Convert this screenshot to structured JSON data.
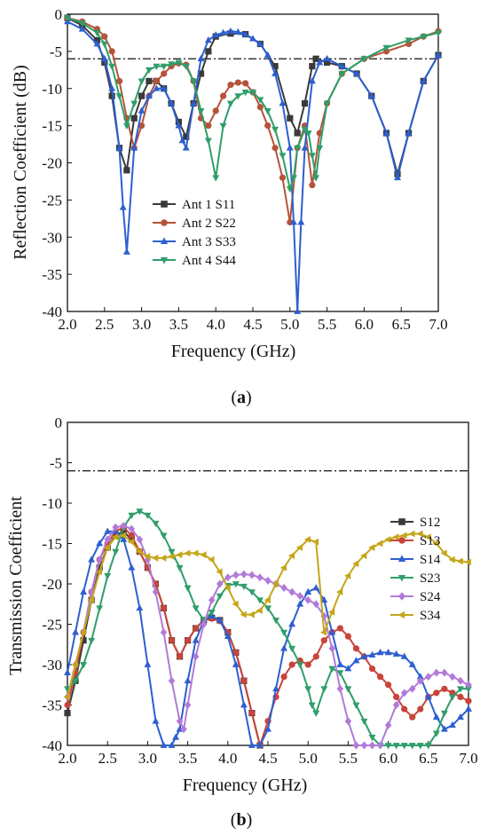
{
  "chart_data": [
    {
      "panel_label": "a",
      "type": "line",
      "xlabel": "Frequency (GHz)",
      "ylabel": "Reflection Coefficient (dB)",
      "xlim": [
        2.0,
        7.0
      ],
      "ylim": [
        -40,
        0
      ],
      "xticks": [
        "2.0",
        "2.5",
        "3.0",
        "3.5",
        "4.0",
        "4.5",
        "5.0",
        "5.5",
        "6.0",
        "6.5",
        "7.0"
      ],
      "yticks": [
        "0",
        "-5",
        "-10",
        "-15",
        "-20",
        "-25",
        "-30",
        "-35",
        "-40"
      ],
      "reference_line": -6,
      "legend_position": "lower-left",
      "series": [
        {
          "name": "Ant 1 S11",
          "color": "#3a3a3a",
          "marker": "square",
          "x": [
            2.0,
            2.2,
            2.4,
            2.5,
            2.6,
            2.7,
            2.8,
            2.9,
            3.0,
            3.1,
            3.2,
            3.3,
            3.4,
            3.5,
            3.6,
            3.7,
            3.8,
            3.9,
            4.0,
            4.2,
            4.4,
            4.6,
            4.8,
            5.0,
            5.1,
            5.2,
            5.3,
            5.35,
            5.5,
            5.7,
            5.9,
            6.1,
            6.3,
            6.45,
            6.6,
            6.8,
            7.0
          ],
          "y": [
            -0.5,
            -1.5,
            -3.5,
            -6.5,
            -11,
            -18,
            -21,
            -14,
            -11,
            -9,
            -9,
            -10,
            -12,
            -14.5,
            -16.5,
            -12,
            -8,
            -5,
            -3,
            -2.6,
            -2.7,
            -4,
            -7,
            -14,
            -16,
            -12,
            -7,
            -6,
            -6.5,
            -7,
            -8,
            -11,
            -16,
            -21.5,
            -16,
            -9,
            -5.5
          ]
        },
        {
          "name": "Ant 2 S22",
          "color": "#b5533a",
          "marker": "circle",
          "x": [
            2.0,
            2.2,
            2.4,
            2.5,
            2.6,
            2.7,
            2.8,
            2.9,
            3.0,
            3.1,
            3.2,
            3.3,
            3.4,
            3.5,
            3.6,
            3.7,
            3.8,
            3.9,
            4.0,
            4.1,
            4.2,
            4.3,
            4.4,
            4.5,
            4.6,
            4.7,
            4.8,
            4.9,
            5.0,
            5.1,
            5.2,
            5.3,
            5.4,
            5.5,
            5.7,
            6.0,
            6.3,
            6.6,
            6.8,
            7.0
          ],
          "y": [
            -0.5,
            -1,
            -2,
            -3,
            -5,
            -9,
            -14,
            -18,
            -15,
            -11,
            -9,
            -8,
            -7,
            -6.6,
            -6.8,
            -9,
            -14,
            -15,
            -13,
            -11,
            -9.5,
            -9.2,
            -9.3,
            -10.5,
            -12.5,
            -15,
            -18,
            -22,
            -28,
            -18,
            -15,
            -23,
            -16,
            -12,
            -8,
            -6,
            -5,
            -4,
            -3,
            -2.3
          ]
        },
        {
          "name": "Ant 3 S33",
          "color": "#2d5fcf",
          "marker": "triangle",
          "x": [
            2.0,
            2.2,
            2.4,
            2.5,
            2.6,
            2.7,
            2.75,
            2.8,
            2.9,
            3.0,
            3.1,
            3.2,
            3.3,
            3.4,
            3.5,
            3.55,
            3.6,
            3.7,
            3.8,
            3.9,
            4.0,
            4.1,
            4.2,
            4.3,
            4.4,
            4.5,
            4.6,
            4.7,
            4.8,
            4.9,
            5.0,
            5.05,
            5.1,
            5.15,
            5.2,
            5.3,
            5.4,
            5.5,
            5.7,
            5.9,
            6.1,
            6.3,
            6.45,
            6.6,
            6.8,
            7.0
          ],
          "y": [
            -1,
            -2,
            -4,
            -6,
            -10,
            -18,
            -26,
            -32,
            -18,
            -13,
            -11,
            -10,
            -10,
            -12,
            -15,
            -17,
            -18,
            -12,
            -6,
            -3.5,
            -2.8,
            -2.5,
            -2.3,
            -2.4,
            -2.7,
            -3.3,
            -4,
            -5.5,
            -8,
            -12,
            -18,
            -28,
            -40,
            -28,
            -18,
            -9,
            -6.5,
            -6,
            -7,
            -8,
            -11,
            -16,
            -22,
            -16,
            -9,
            -5.5
          ]
        },
        {
          "name": "Ant 4 S44",
          "color": "#2e9e6a",
          "marker": "triangle-down",
          "x": [
            2.0,
            2.2,
            2.4,
            2.5,
            2.6,
            2.7,
            2.8,
            2.9,
            3.0,
            3.1,
            3.2,
            3.3,
            3.4,
            3.5,
            3.6,
            3.7,
            3.8,
            3.9,
            4.0,
            4.1,
            4.2,
            4.3,
            4.4,
            4.5,
            4.6,
            4.7,
            4.8,
            4.9,
            5.0,
            5.05,
            5.1,
            5.2,
            5.25,
            5.3,
            5.35,
            5.4,
            5.5,
            5.7,
            6.0,
            6.3,
            6.6,
            6.8,
            7.0
          ],
          "y": [
            -0.5,
            -1.2,
            -2.5,
            -4,
            -7,
            -11,
            -15,
            -12,
            -9,
            -7.5,
            -7,
            -7,
            -6.7,
            -6.5,
            -7,
            -9,
            -13,
            -17,
            -22,
            -15,
            -12,
            -11,
            -10.5,
            -10.5,
            -11.5,
            -13,
            -15.5,
            -19,
            -23.5,
            -22,
            -18,
            -15.5,
            -16,
            -19,
            -22,
            -18,
            -12,
            -8,
            -6,
            -4.5,
            -3.5,
            -3,
            -2.5
          ]
        }
      ]
    },
    {
      "panel_label": "b",
      "type": "line",
      "xlabel": "Frequency (GHz)",
      "ylabel": "Transmission Coefficient",
      "xlim": [
        2.0,
        7.0
      ],
      "ylim": [
        -40,
        0
      ],
      "xticks": [
        "2.0",
        "2.5",
        "3.0",
        "3.5",
        "4.0",
        "4.5",
        "5.0",
        "5.5",
        "6.0",
        "6.5",
        "7.0"
      ],
      "yticks": [
        "0",
        "-5",
        "-10",
        "-15",
        "-20",
        "-25",
        "-30",
        "-35",
        "-40"
      ],
      "reference_line": -6,
      "legend_position": "right",
      "series": [
        {
          "name": "S12",
          "color": "#3a3a3a",
          "marker": "square",
          "x": [
            2.0,
            2.1,
            2.2,
            2.3,
            2.4,
            2.5,
            2.6,
            2.7,
            2.8,
            2.9,
            3.0,
            3.1,
            3.2,
            3.3,
            3.4,
            3.5,
            3.6,
            3.7,
            3.8,
            3.9,
            4.0,
            4.1,
            4.2,
            4.3,
            4.4
          ],
          "y": [
            -36,
            -32,
            -27,
            -22,
            -18,
            -15.5,
            -14,
            -13.5,
            -14.5,
            -16,
            -18,
            -20,
            -23,
            -27,
            -29,
            -27,
            -25.5,
            -24.5,
            -24.2,
            -24.5,
            -26,
            -28.5,
            -32,
            -36,
            -40
          ]
        },
        {
          "name": "S13",
          "color": "#c8443a",
          "marker": "circle",
          "x": [
            2.0,
            2.1,
            2.2,
            2.3,
            2.4,
            2.5,
            2.6,
            2.7,
            2.8,
            2.9,
            3.0,
            3.1,
            3.2,
            3.3,
            3.4,
            3.5,
            3.6,
            3.7,
            3.8,
            3.9,
            4.0,
            4.1,
            4.2,
            4.3,
            4.4,
            4.5,
            4.6,
            4.7,
            4.8,
            4.9,
            5.0,
            5.1,
            5.2,
            5.3,
            5.4,
            5.5,
            5.6,
            5.7,
            5.8,
            5.9,
            6.0,
            6.1,
            6.2,
            6.3,
            6.4,
            6.5,
            6.6,
            6.7,
            6.8,
            6.9,
            7.0
          ],
          "y": [
            -35,
            -31,
            -26,
            -21,
            -17,
            -15,
            -13.5,
            -13,
            -14,
            -16,
            -18,
            -20,
            -23,
            -27,
            -29,
            -27,
            -25.5,
            -24.5,
            -24.3,
            -24.6,
            -26,
            -28.5,
            -32,
            -36,
            -40,
            -37,
            -34,
            -31.5,
            -30,
            -29.5,
            -30,
            -29,
            -27,
            -26,
            -25.5,
            -26.5,
            -28,
            -29,
            -30.5,
            -31.5,
            -32.5,
            -34,
            -35.5,
            -36.5,
            -35.5,
            -34,
            -33.5,
            -33,
            -33.5,
            -34,
            -34.5
          ]
        },
        {
          "name": "S14",
          "color": "#2d5fcf",
          "marker": "triangle",
          "x": [
            2.0,
            2.1,
            2.2,
            2.3,
            2.4,
            2.5,
            2.6,
            2.7,
            2.8,
            2.9,
            3.0,
            3.1,
            3.2,
            3.3,
            3.35,
            3.4,
            3.5,
            3.6,
            3.7,
            3.8,
            3.9,
            4.0,
            4.1,
            4.2,
            4.3,
            4.4,
            4.5,
            4.6,
            4.7,
            4.8,
            4.9,
            5.0,
            5.1,
            5.2,
            5.3,
            5.4,
            5.5,
            5.6,
            5.7,
            5.8,
            5.9,
            6.0,
            6.1,
            6.2,
            6.3,
            6.4,
            6.5,
            6.6,
            6.7,
            6.8,
            6.9,
            7.0
          ],
          "y": [
            -31,
            -26,
            -21,
            -17,
            -15,
            -13.5,
            -13.5,
            -14.5,
            -18,
            -23,
            -30,
            -37,
            -40,
            -40,
            -39,
            -38,
            -32,
            -27,
            -24.5,
            -24,
            -24.5,
            -26.5,
            -30,
            -35,
            -40,
            -40,
            -38,
            -33,
            -28,
            -25,
            -22.5,
            -21,
            -20.5,
            -22,
            -26,
            -30,
            -30.5,
            -29.5,
            -29,
            -28.8,
            -28.5,
            -28.5,
            -28.7,
            -29,
            -30,
            -31.5,
            -34,
            -36.5,
            -38,
            -37.5,
            -36.5,
            -35.5
          ]
        },
        {
          "name": "S23",
          "color": "#2e9e6a",
          "marker": "triangle-down",
          "x": [
            2.0,
            2.1,
            2.2,
            2.3,
            2.4,
            2.5,
            2.6,
            2.7,
            2.8,
            2.9,
            3.0,
            3.1,
            3.2,
            3.3,
            3.4,
            3.5,
            3.6,
            3.7,
            3.8,
            3.9,
            4.0,
            4.1,
            4.2,
            4.3,
            4.4,
            4.5,
            4.6,
            4.7,
            4.8,
            4.9,
            5.0,
            5.05,
            5.1,
            5.2,
            5.3,
            5.4,
            5.5,
            5.6,
            5.7,
            5.8,
            5.9,
            6.0,
            6.1,
            6.2,
            6.3,
            6.4,
            6.5,
            6.6,
            6.7,
            6.8,
            6.9,
            7.0
          ],
          "y": [
            -33,
            -32,
            -30,
            -27,
            -23,
            -19,
            -16,
            -13,
            -11.5,
            -11,
            -11.5,
            -12.5,
            -14,
            -16,
            -18,
            -20.5,
            -23,
            -24.5,
            -23.5,
            -21.5,
            -20.2,
            -20,
            -20.3,
            -21,
            -22,
            -23,
            -24.5,
            -26,
            -28,
            -30,
            -33,
            -35,
            -36,
            -33,
            -30.5,
            -31,
            -33,
            -35,
            -37,
            -39,
            -40,
            -40,
            -40,
            -40,
            -40,
            -40,
            -40,
            -38.5,
            -36,
            -34,
            -33,
            -33
          ]
        },
        {
          "name": "S24",
          "color": "#b27ad8",
          "marker": "diamond",
          "x": [
            2.0,
            2.1,
            2.2,
            2.3,
            2.4,
            2.5,
            2.6,
            2.7,
            2.8,
            2.9,
            3.0,
            3.1,
            3.2,
            3.3,
            3.4,
            3.45,
            3.5,
            3.6,
            3.7,
            3.8,
            3.9,
            4.0,
            4.1,
            4.2,
            4.3,
            4.4,
            4.5,
            4.6,
            4.7,
            4.8,
            4.9,
            5.0,
            5.1,
            5.2,
            5.3,
            5.4,
            5.5,
            5.6,
            5.7,
            5.8,
            5.9,
            6.0,
            6.1,
            6.2,
            6.3,
            6.4,
            6.5,
            6.6,
            6.7,
            6.8,
            6.9,
            7.0
          ],
          "y": [
            -34,
            -30,
            -26,
            -21,
            -17,
            -14.5,
            -13,
            -12.8,
            -13.2,
            -14.5,
            -17,
            -21,
            -26,
            -32,
            -37,
            -38,
            -35,
            -29,
            -25,
            -22,
            -20,
            -19.2,
            -18.9,
            -18.8,
            -18.9,
            -19.2,
            -19.6,
            -20,
            -20.5,
            -21,
            -21.5,
            -22,
            -22.5,
            -24,
            -28,
            -33,
            -37,
            -40,
            -40,
            -40,
            -40,
            -37.5,
            -35,
            -33.5,
            -33,
            -32,
            -31.5,
            -31,
            -31,
            -31.5,
            -32,
            -32.5
          ]
        },
        {
          "name": "S34",
          "color": "#c4a61a",
          "marker": "triangle-left",
          "x": [
            2.0,
            2.1,
            2.2,
            2.3,
            2.4,
            2.5,
            2.6,
            2.7,
            2.8,
            2.9,
            3.0,
            3.1,
            3.2,
            3.3,
            3.4,
            3.5,
            3.6,
            3.7,
            3.8,
            3.9,
            4.0,
            4.1,
            4.2,
            4.3,
            4.4,
            4.5,
            4.6,
            4.7,
            4.8,
            4.9,
            5.0,
            5.1,
            5.2,
            5.3,
            5.4,
            5.5,
            5.6,
            5.7,
            5.8,
            5.9,
            6.0,
            6.1,
            6.2,
            6.3,
            6.4,
            6.5,
            6.6,
            6.7,
            6.8,
            6.9,
            7.0
          ],
          "y": [
            -34,
            -30,
            -26,
            -22,
            -18.5,
            -15.5,
            -14.2,
            -14,
            -14.8,
            -16,
            -16.6,
            -16.8,
            -16.8,
            -16.6,
            -16.4,
            -16.2,
            -16.2,
            -16.4,
            -17,
            -18.5,
            -20.5,
            -22.5,
            -23.8,
            -23.8,
            -23.3,
            -22,
            -20,
            -18,
            -16.5,
            -15.5,
            -14.5,
            -14.8,
            -26,
            -23.5,
            -21,
            -19,
            -17.5,
            -16.5,
            -15.5,
            -15,
            -14.5,
            -14.2,
            -14,
            -13.8,
            -13.8,
            -14.2,
            -15,
            -16.2,
            -17,
            -17.2,
            -17.3
          ]
        }
      ]
    }
  ]
}
